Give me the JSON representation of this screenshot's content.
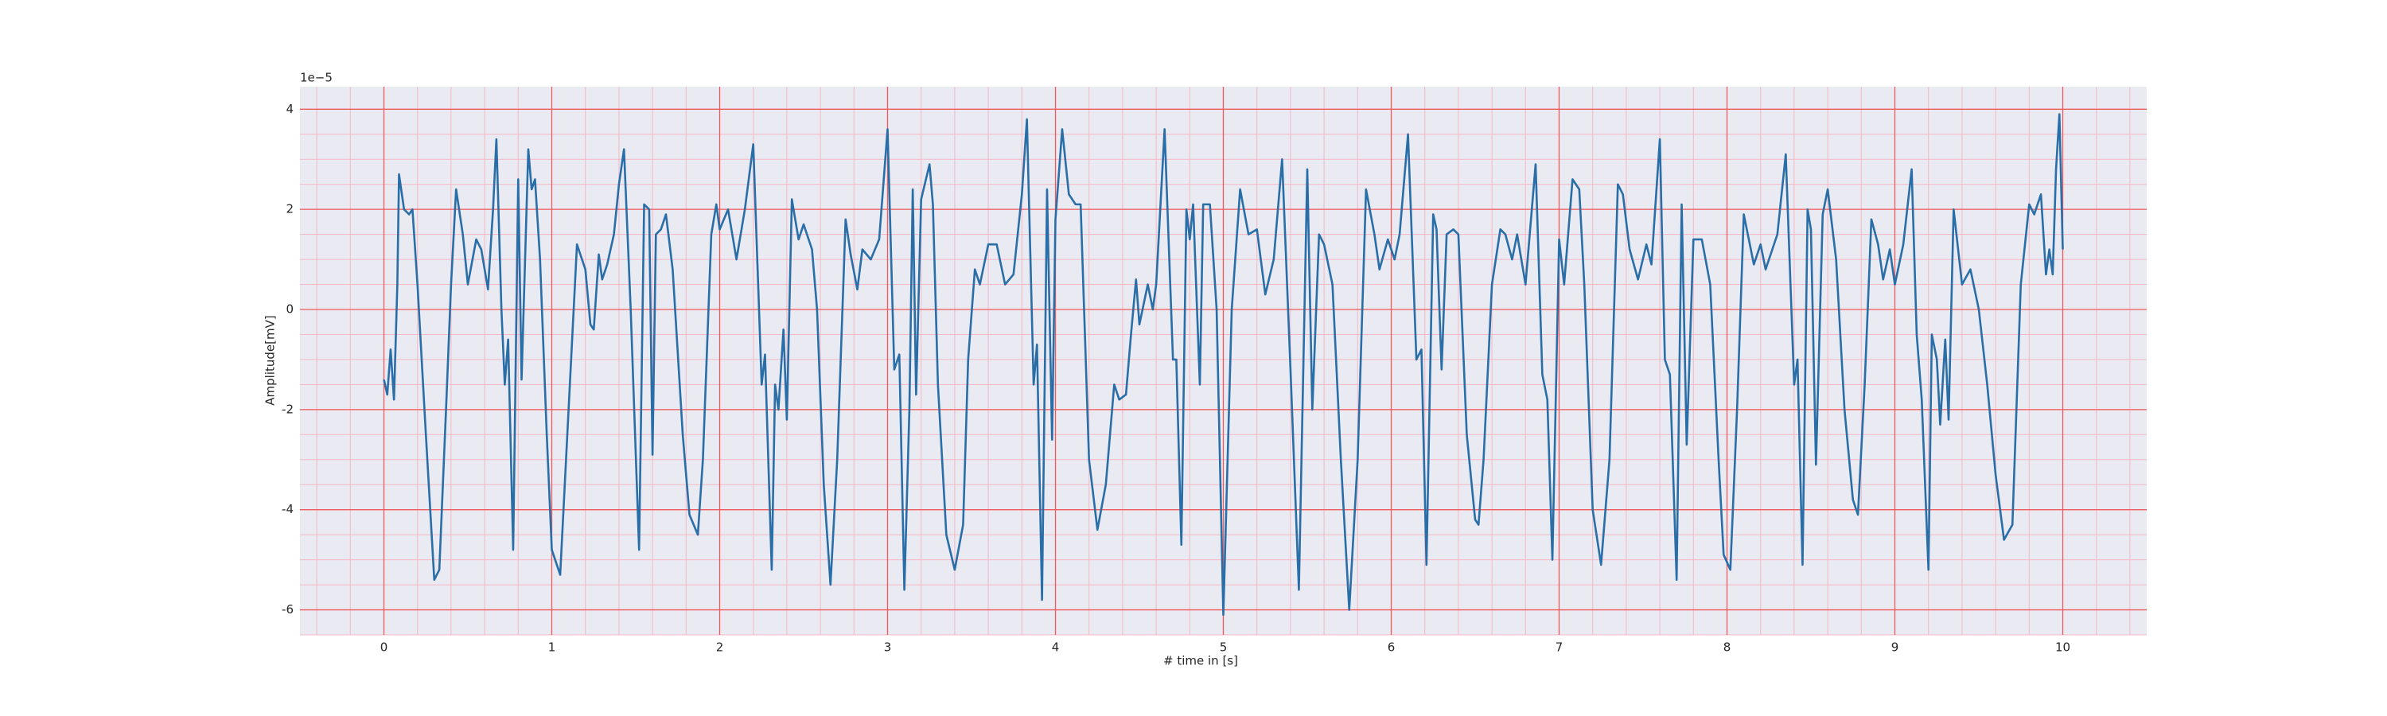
{
  "chart_data": {
    "type": "line",
    "xlabel": "# time in [s]",
    "ylabel": "Amplitude[mV]",
    "y_offset_label": "1e−5",
    "color": "#2a6ea8",
    "grid": true,
    "minor_grid": true,
    "xlim": [
      -0.5,
      10.5
    ],
    "xticks": [
      0,
      1,
      2,
      3,
      4,
      5,
      6,
      7,
      8,
      9,
      10
    ],
    "ylim": [
      -6.5,
      4.45
    ],
    "yticks": [
      -6,
      -4,
      -2,
      0,
      2,
      4
    ],
    "x": [
      0.0,
      0.02,
      0.04,
      0.06,
      0.08,
      0.09,
      0.12,
      0.15,
      0.17,
      0.2,
      0.25,
      0.3,
      0.33,
      0.37,
      0.4,
      0.43,
      0.47,
      0.5,
      0.55,
      0.58,
      0.62,
      0.65,
      0.67,
      0.7,
      0.72,
      0.74,
      0.77,
      0.8,
      0.82,
      0.86,
      0.88,
      0.9,
      0.93,
      0.97,
      1.0,
      1.05,
      1.1,
      1.15,
      1.2,
      1.23,
      1.25,
      1.28,
      1.3,
      1.33,
      1.37,
      1.4,
      1.43,
      1.47,
      1.52,
      1.55,
      1.58,
      1.6,
      1.62,
      1.65,
      1.68,
      1.72,
      1.78,
      1.82,
      1.87,
      1.9,
      1.95,
      1.98,
      2.0,
      2.05,
      2.1,
      2.15,
      2.2,
      2.25,
      2.27,
      2.31,
      2.33,
      2.35,
      2.38,
      2.4,
      2.43,
      2.47,
      2.5,
      2.55,
      2.58,
      2.62,
      2.66,
      2.7,
      2.75,
      2.78,
      2.82,
      2.85,
      2.9,
      2.95,
      3.0,
      3.04,
      3.07,
      3.1,
      3.13,
      3.15,
      3.17,
      3.2,
      3.25,
      3.27,
      3.3,
      3.35,
      3.4,
      3.45,
      3.48,
      3.52,
      3.55,
      3.6,
      3.65,
      3.7,
      3.75,
      3.8,
      3.83,
      3.87,
      3.89,
      3.92,
      3.95,
      3.98,
      4.0,
      4.04,
      4.08,
      4.12,
      4.15,
      4.2,
      4.25,
      4.3,
      4.35,
      4.38,
      4.42,
      4.45,
      4.48,
      4.5,
      4.55,
      4.58,
      4.6,
      4.65,
      4.7,
      4.72,
      4.75,
      4.78,
      4.8,
      4.82,
      4.86,
      4.88,
      4.92,
      4.96,
      5.0,
      5.05,
      5.1,
      5.15,
      5.2,
      5.25,
      5.3,
      5.35,
      5.4,
      5.45,
      5.5,
      5.53,
      5.57,
      5.6,
      5.65,
      5.7,
      5.75,
      5.8,
      5.85,
      5.9,
      5.93,
      5.98,
      6.02,
      6.05,
      6.1,
      6.15,
      6.18,
      6.21,
      6.25,
      6.27,
      6.3,
      6.33,
      6.37,
      6.4,
      6.45,
      6.5,
      6.52,
      6.55,
      6.6,
      6.65,
      6.68,
      6.72,
      6.75,
      6.8,
      6.86,
      6.9,
      6.93,
      6.96,
      7.0,
      7.03,
      7.08,
      7.12,
      7.15,
      7.2,
      7.25,
      7.3,
      7.35,
      7.38,
      7.42,
      7.47,
      7.52,
      7.55,
      7.6,
      7.63,
      7.66,
      7.7,
      7.73,
      7.76,
      7.8,
      7.85,
      7.9,
      7.95,
      7.98,
      8.02,
      8.06,
      8.1,
      8.13,
      8.16,
      8.2,
      8.23,
      8.27,
      8.3,
      8.35,
      8.4,
      8.42,
      8.45,
      8.48,
      8.5,
      8.53,
      8.57,
      8.6,
      8.65,
      8.7,
      8.75,
      8.78,
      8.82,
      8.86,
      8.9,
      8.93,
      8.97,
      9.0,
      9.05,
      9.1,
      9.13,
      9.16,
      9.2,
      9.22,
      9.25,
      9.27,
      9.3,
      9.32,
      9.35,
      9.4,
      9.45,
      9.5,
      9.55,
      9.6,
      9.65,
      9.7,
      9.75,
      9.8,
      9.83,
      9.87,
      9.9,
      9.92,
      9.94,
      9.96,
      9.98,
      10.0
    ],
    "values": [
      -1.4,
      -1.7,
      -0.8,
      -1.8,
      0.5,
      2.7,
      2.0,
      1.9,
      2.0,
      0.5,
      -2.5,
      -5.4,
      -5.2,
      -2,
      0.5,
      2.4,
      1.5,
      0.5,
      1.4,
      1.2,
      0.4,
      2,
      3.4,
      0,
      -1.5,
      -0.6,
      -4.8,
      2.6,
      -1.4,
      3.2,
      2.4,
      2.6,
      1,
      -2.5,
      -4.8,
      -5.3,
      -2,
      1.3,
      0.8,
      -0.3,
      -0.4,
      1.1,
      0.6,
      0.9,
      1.5,
      2.5,
      3.2,
      0,
      -4.8,
      2.1,
      2.0,
      -2.9,
      1.5,
      1.6,
      1.9,
      0.8,
      -2.5,
      -4.1,
      -4.5,
      -3,
      1.5,
      2.1,
      1.6,
      2.0,
      1.0,
      2.0,
      3.3,
      -1.5,
      -0.9,
      -5.2,
      -1.5,
      -2,
      -0.4,
      -2.2,
      2.2,
      1.4,
      1.7,
      1.2,
      0,
      -3.5,
      -5.5,
      -3,
      1.8,
      1.1,
      0.4,
      1.2,
      1.0,
      1.4,
      3.6,
      -1.2,
      -0.9,
      -5.6,
      -2,
      2.4,
      -1.7,
      2.2,
      2.9,
      2.1,
      -1.5,
      -4.5,
      -5.2,
      -4.3,
      -1,
      0.8,
      0.5,
      1.3,
      1.3,
      0.5,
      0.7,
      2.3,
      3.8,
      -1.5,
      -0.7,
      -5.8,
      2.4,
      -2.6,
      1.8,
      3.6,
      2.3,
      2.1,
      2.1,
      -3,
      -4.4,
      -3.5,
      -1.5,
      -1.8,
      -1.7,
      -0.5,
      0.6,
      -0.3,
      0.5,
      0,
      0.5,
      3.6,
      -1,
      -1,
      -4.7,
      2,
      1.4,
      2.1,
      -1.5,
      2.1,
      2.1,
      0,
      -6.1,
      0,
      2.4,
      1.5,
      1.6,
      0.3,
      1.0,
      3.0,
      -1.2,
      -5.6,
      2.8,
      -2,
      1.5,
      1.3,
      0.5,
      -3,
      -6.0,
      -3,
      2.4,
      1.5,
      0.8,
      1.4,
      1.0,
      1.5,
      3.5,
      -1,
      -0.8,
      -5.1,
      1.9,
      1.6,
      -1.2,
      1.5,
      1.6,
      1.5,
      -2.5,
      -4.2,
      -4.3,
      -3,
      0.5,
      1.6,
      1.5,
      1.0,
      1.5,
      0.5,
      2.9,
      -1.3,
      -1.8,
      -5,
      1.4,
      0.5,
      2.6,
      2.4,
      0.5,
      -4,
      -5.1,
      -3,
      2.5,
      2.3,
      1.2,
      0.6,
      1.3,
      0.9,
      3.4,
      -1,
      -1.3,
      -5.4,
      2.1,
      -2.7,
      1.4,
      1.4,
      0.5,
      -3,
      -4.9,
      -5.2,
      -2,
      1.9,
      1.4,
      0.9,
      1.3,
      0.8,
      1.2,
      1.5,
      3.1,
      -1.5,
      -1,
      -5.1,
      2.0,
      1.6,
      -3.1,
      1.9,
      2.4,
      1.0,
      -2,
      -3.8,
      -4.1,
      -1.5,
      1.8,
      1.3,
      0.6,
      1.2,
      0.5,
      1.3,
      2.8,
      -0.5,
      -1.8,
      -5.2,
      -0.5,
      -1,
      -2.3,
      -0.6,
      -2.2,
      2.0,
      0.5,
      0.8,
      0,
      -1.5,
      -3.3,
      -4.6,
      -4.3,
      0.5,
      2.1,
      1.9,
      2.3,
      0.7,
      1.2,
      0.7,
      2.8,
      3.9,
      1.2
    ]
  }
}
